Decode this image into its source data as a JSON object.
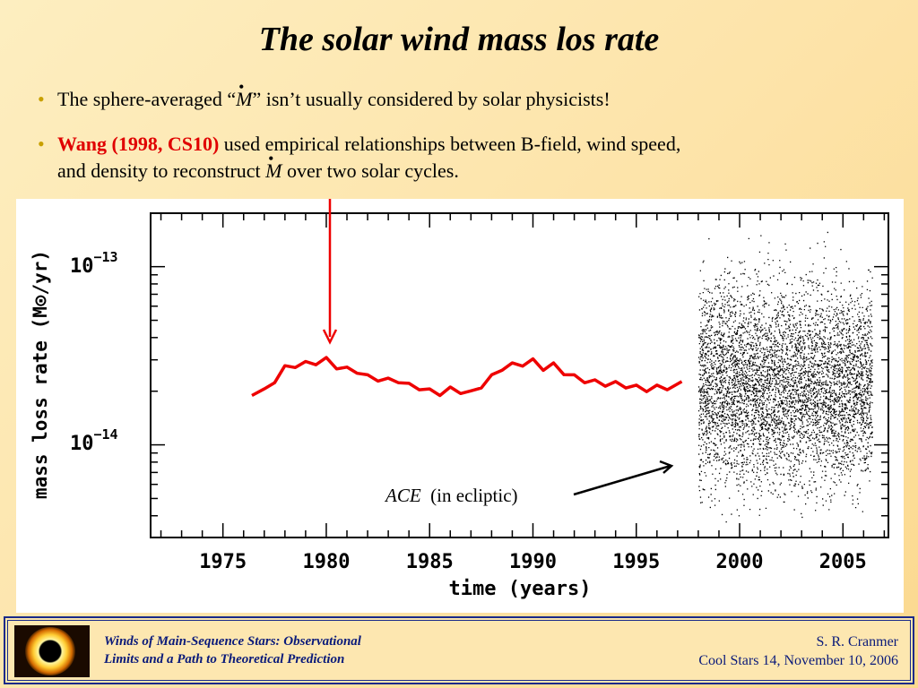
{
  "slide": {
    "title": "The solar wind mass los rate",
    "bullets": [
      {
        "pre": "The sphere-averaged “",
        "symbol": "M",
        "post": "” isn’t usually considered by solar physicists!"
      },
      {
        "highlight": "Wang (1998, CS10)",
        "line1": " used empirical relationships between B-field, wind speed,",
        "line2_pre": "and density to reconstruct ",
        "symbol": "M",
        "line2_post": " over two solar cycles."
      }
    ],
    "bullet_marker": "•",
    "colors": {
      "highlight": "#e00000",
      "accent_bullet": "#c8a000",
      "footer_text": "#0a1a7a"
    }
  },
  "footer": {
    "left_line1": "Winds of Main-Sequence Stars:  Observational",
    "left_line2": "Limits and a Path to Theoretical Prediction",
    "right_line1": "S. R. Cranmer",
    "right_line2": "Cool Stars 14,  November 10, 2006",
    "logo": "solar-eclipse-image"
  },
  "chart_data": {
    "type": "line",
    "xlabel": "time (years)",
    "ylabel": "mass loss rate (M⊙/yr)",
    "xlim": [
      1971.5,
      2007.2
    ],
    "ylim_log10": [
      -14.52,
      -12.7
    ],
    "y_scale": "log",
    "x_ticks": [
      "1975",
      "1980",
      "1985",
      "1990",
      "1995",
      "2000",
      "2005"
    ],
    "x_tick_values": [
      1975,
      1980,
      1985,
      1990,
      1995,
      2000,
      2005
    ],
    "y_ticks": [
      {
        "base": "10",
        "exp": "−13",
        "value": 1e-13
      },
      {
        "base": "10",
        "exp": "−14",
        "value": 1e-14
      }
    ],
    "annotations": [
      {
        "text": "ACE",
        "text2": "  (in ecliptic)"
      }
    ],
    "series": [
      {
        "color": "#ee0000",
        "style": "line",
        "x": [
          1976.4,
          1977.0,
          1977.5,
          1978.0,
          1978.5,
          1979.0,
          1979.5,
          1980.0,
          1980.5,
          1981.0,
          1981.5,
          1982.0,
          1982.5,
          1983.0,
          1983.5,
          1984.0,
          1984.5,
          1985.0,
          1985.5,
          1986.0,
          1986.5,
          1987.0,
          1987.5,
          1988.0,
          1988.5,
          1989.0,
          1989.5,
          1990.0,
          1990.5,
          1991.0,
          1991.5,
          1992.0,
          1992.5,
          1993.0,
          1993.5,
          1994.0,
          1994.5,
          1995.0,
          1995.5,
          1996.0,
          1996.5,
          1997.2
        ],
        "y": [
          1.95e-14,
          2e-14,
          2.3e-14,
          2.7e-14,
          2.8e-14,
          2.85e-14,
          2.9e-14,
          3e-14,
          2.75e-14,
          2.65e-14,
          2.6e-14,
          2.4e-14,
          2.35e-14,
          2.3e-14,
          2.3e-14,
          2.15e-14,
          2.1e-14,
          2e-14,
          1.95e-14,
          2.05e-14,
          2e-14,
          1.95e-14,
          2.15e-14,
          2.4e-14,
          2.7e-14,
          2.8e-14,
          2.85e-14,
          2.95e-14,
          2.7e-14,
          2.8e-14,
          2.55e-14,
          2.4e-14,
          2.3e-14,
          2.25e-14,
          2.2e-14,
          2.2e-14,
          2.15e-14,
          2.1e-14,
          2.05e-14,
          2.1e-14,
          2.1e-14,
          2.2e-14
        ]
      },
      {
        "name": "ACE",
        "color": "#000000",
        "style": "scatter",
        "x_range": [
          1998.0,
          2006.4
        ],
        "y_center": 2.2e-14,
        "y_range": [
          3e-15,
          2e-13
        ]
      }
    ]
  }
}
